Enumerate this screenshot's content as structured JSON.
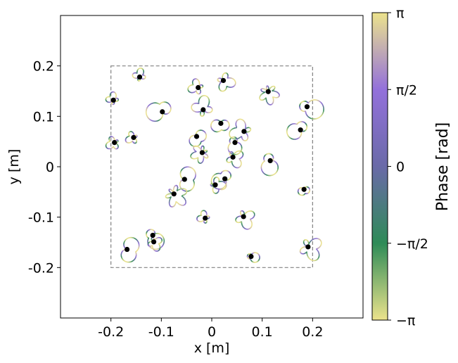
{
  "chart_data": {
    "type": "scatter",
    "title": "",
    "xlabel": "x [m]",
    "ylabel": "y [m]",
    "xlim": [
      -0.3,
      0.3
    ],
    "ylim": [
      -0.3,
      0.3
    ],
    "x_ticks": [
      -0.2,
      -0.1,
      0,
      0.1,
      0.2
    ],
    "x_tick_labels": [
      "-0.2",
      "-0.1",
      "0",
      "0.1",
      "0.2"
    ],
    "y_ticks": [
      -0.2,
      -0.1,
      0,
      0.1,
      0.2
    ],
    "y_tick_labels": [
      "-0.2",
      "-0.1",
      "0",
      "0.1",
      "0.2"
    ],
    "grid": false,
    "boundary_box": {
      "x": [
        -0.2,
        0.2
      ],
      "y": [
        -0.2,
        0.2
      ],
      "style": "dashed",
      "color": "#808080"
    },
    "colorbar": {
      "label": "Phase [rad]",
      "range": [
        -3.1416,
        3.1416
      ],
      "tick_values": [
        -3.1416,
        -1.5708,
        0,
        1.5708,
        3.1416
      ],
      "tick_labels": [
        "−π",
        "−π/2",
        "0",
        "π/2",
        "π"
      ],
      "colormap_stops": [
        "#ece38c",
        "#2e8b57",
        "#6a6aa8",
        "#9370db",
        "#ece38c"
      ]
    },
    "source_points": [
      {
        "x": -0.143,
        "y": 0.178
      },
      {
        "x": -0.195,
        "y": 0.132
      },
      {
        "x": -0.027,
        "y": 0.157
      },
      {
        "x": 0.023,
        "y": 0.171
      },
      {
        "x": 0.112,
        "y": 0.149
      },
      {
        "x": 0.189,
        "y": 0.119
      },
      {
        "x": -0.098,
        "y": 0.109
      },
      {
        "x": -0.017,
        "y": 0.113
      },
      {
        "x": 0.018,
        "y": 0.086
      },
      {
        "x": -0.193,
        "y": 0.048
      },
      {
        "x": -0.155,
        "y": 0.058
      },
      {
        "x": -0.03,
        "y": 0.06
      },
      {
        "x": 0.064,
        "y": 0.07
      },
      {
        "x": 0.046,
        "y": 0.048
      },
      {
        "x": 0.176,
        "y": 0.073
      },
      {
        "x": -0.019,
        "y": 0.028
      },
      {
        "x": 0.042,
        "y": 0.019
      },
      {
        "x": 0.116,
        "y": 0.012
      },
      {
        "x": -0.054,
        "y": -0.025
      },
      {
        "x": -0.075,
        "y": -0.054
      },
      {
        "x": 0.007,
        "y": -0.036
      },
      {
        "x": 0.026,
        "y": -0.024
      },
      {
        "x": 0.183,
        "y": -0.045
      },
      {
        "x": -0.013,
        "y": -0.102
      },
      {
        "x": 0.063,
        "y": -0.099
      },
      {
        "x": -0.168,
        "y": -0.164
      },
      {
        "x": -0.117,
        "y": -0.136
      },
      {
        "x": -0.115,
        "y": -0.149
      },
      {
        "x": 0.078,
        "y": -0.178
      },
      {
        "x": 0.191,
        "y": -0.159
      }
    ]
  }
}
